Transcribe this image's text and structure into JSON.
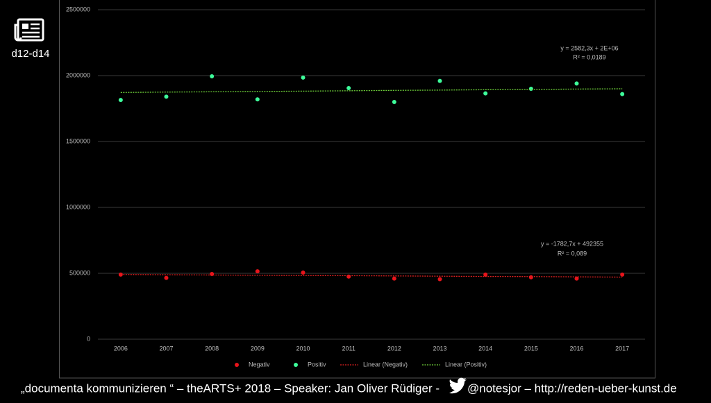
{
  "slide": {
    "label": "d12-d14"
  },
  "footer": {
    "before": "„documenta kommunizieren “ – theARTS+ 2018 – Speaker: Jan Oliver Rüdiger -",
    "after": "@notesjor – http://reden-ueber-kunst.de"
  },
  "chart_data": {
    "type": "scatter",
    "categories": [
      "2006",
      "2007",
      "2008",
      "2009",
      "2010",
      "2011",
      "2012",
      "2013",
      "2014",
      "2015",
      "2016",
      "2017"
    ],
    "series": [
      {
        "name": "Negativ",
        "kind": "scatter",
        "color": "#e8141b",
        "values": [
          490000,
          465000,
          495000,
          515000,
          505000,
          475000,
          460000,
          455000,
          490000,
          470000,
          460000,
          490000
        ]
      },
      {
        "name": "Positiv",
        "kind": "scatter",
        "color": "#3dfc9a",
        "values": [
          1815000,
          1840000,
          1995000,
          1820000,
          1985000,
          1905000,
          1800000,
          1960000,
          1865000,
          1900000,
          1940000,
          1860000
        ]
      },
      {
        "name": "Linear (Negativ)",
        "kind": "trendline",
        "color": "#e02020",
        "values": [
          491000,
          489000,
          487000,
          485000,
          483000,
          482000,
          480000,
          478000,
          476000,
          475000,
          473000,
          471000
        ]
      },
      {
        "name": "Linear (Positiv)",
        "kind": "trendline",
        "color": "#6fd23a",
        "values": [
          1872000,
          1875000,
          1877000,
          1880000,
          1882000,
          1885000,
          1888000,
          1890000,
          1893000,
          1895000,
          1898000,
          1900000
        ]
      }
    ],
    "annotations": [
      "y = 2582,3x + 2E+06",
      "R² = 0,0189",
      "y = -1782,7x + 492355",
      "R² = 0,089"
    ],
    "ylim": [
      0,
      2500000
    ],
    "yticks": [
      0,
      500000,
      1000000,
      1500000,
      2000000,
      2500000
    ],
    "grid": true
  }
}
